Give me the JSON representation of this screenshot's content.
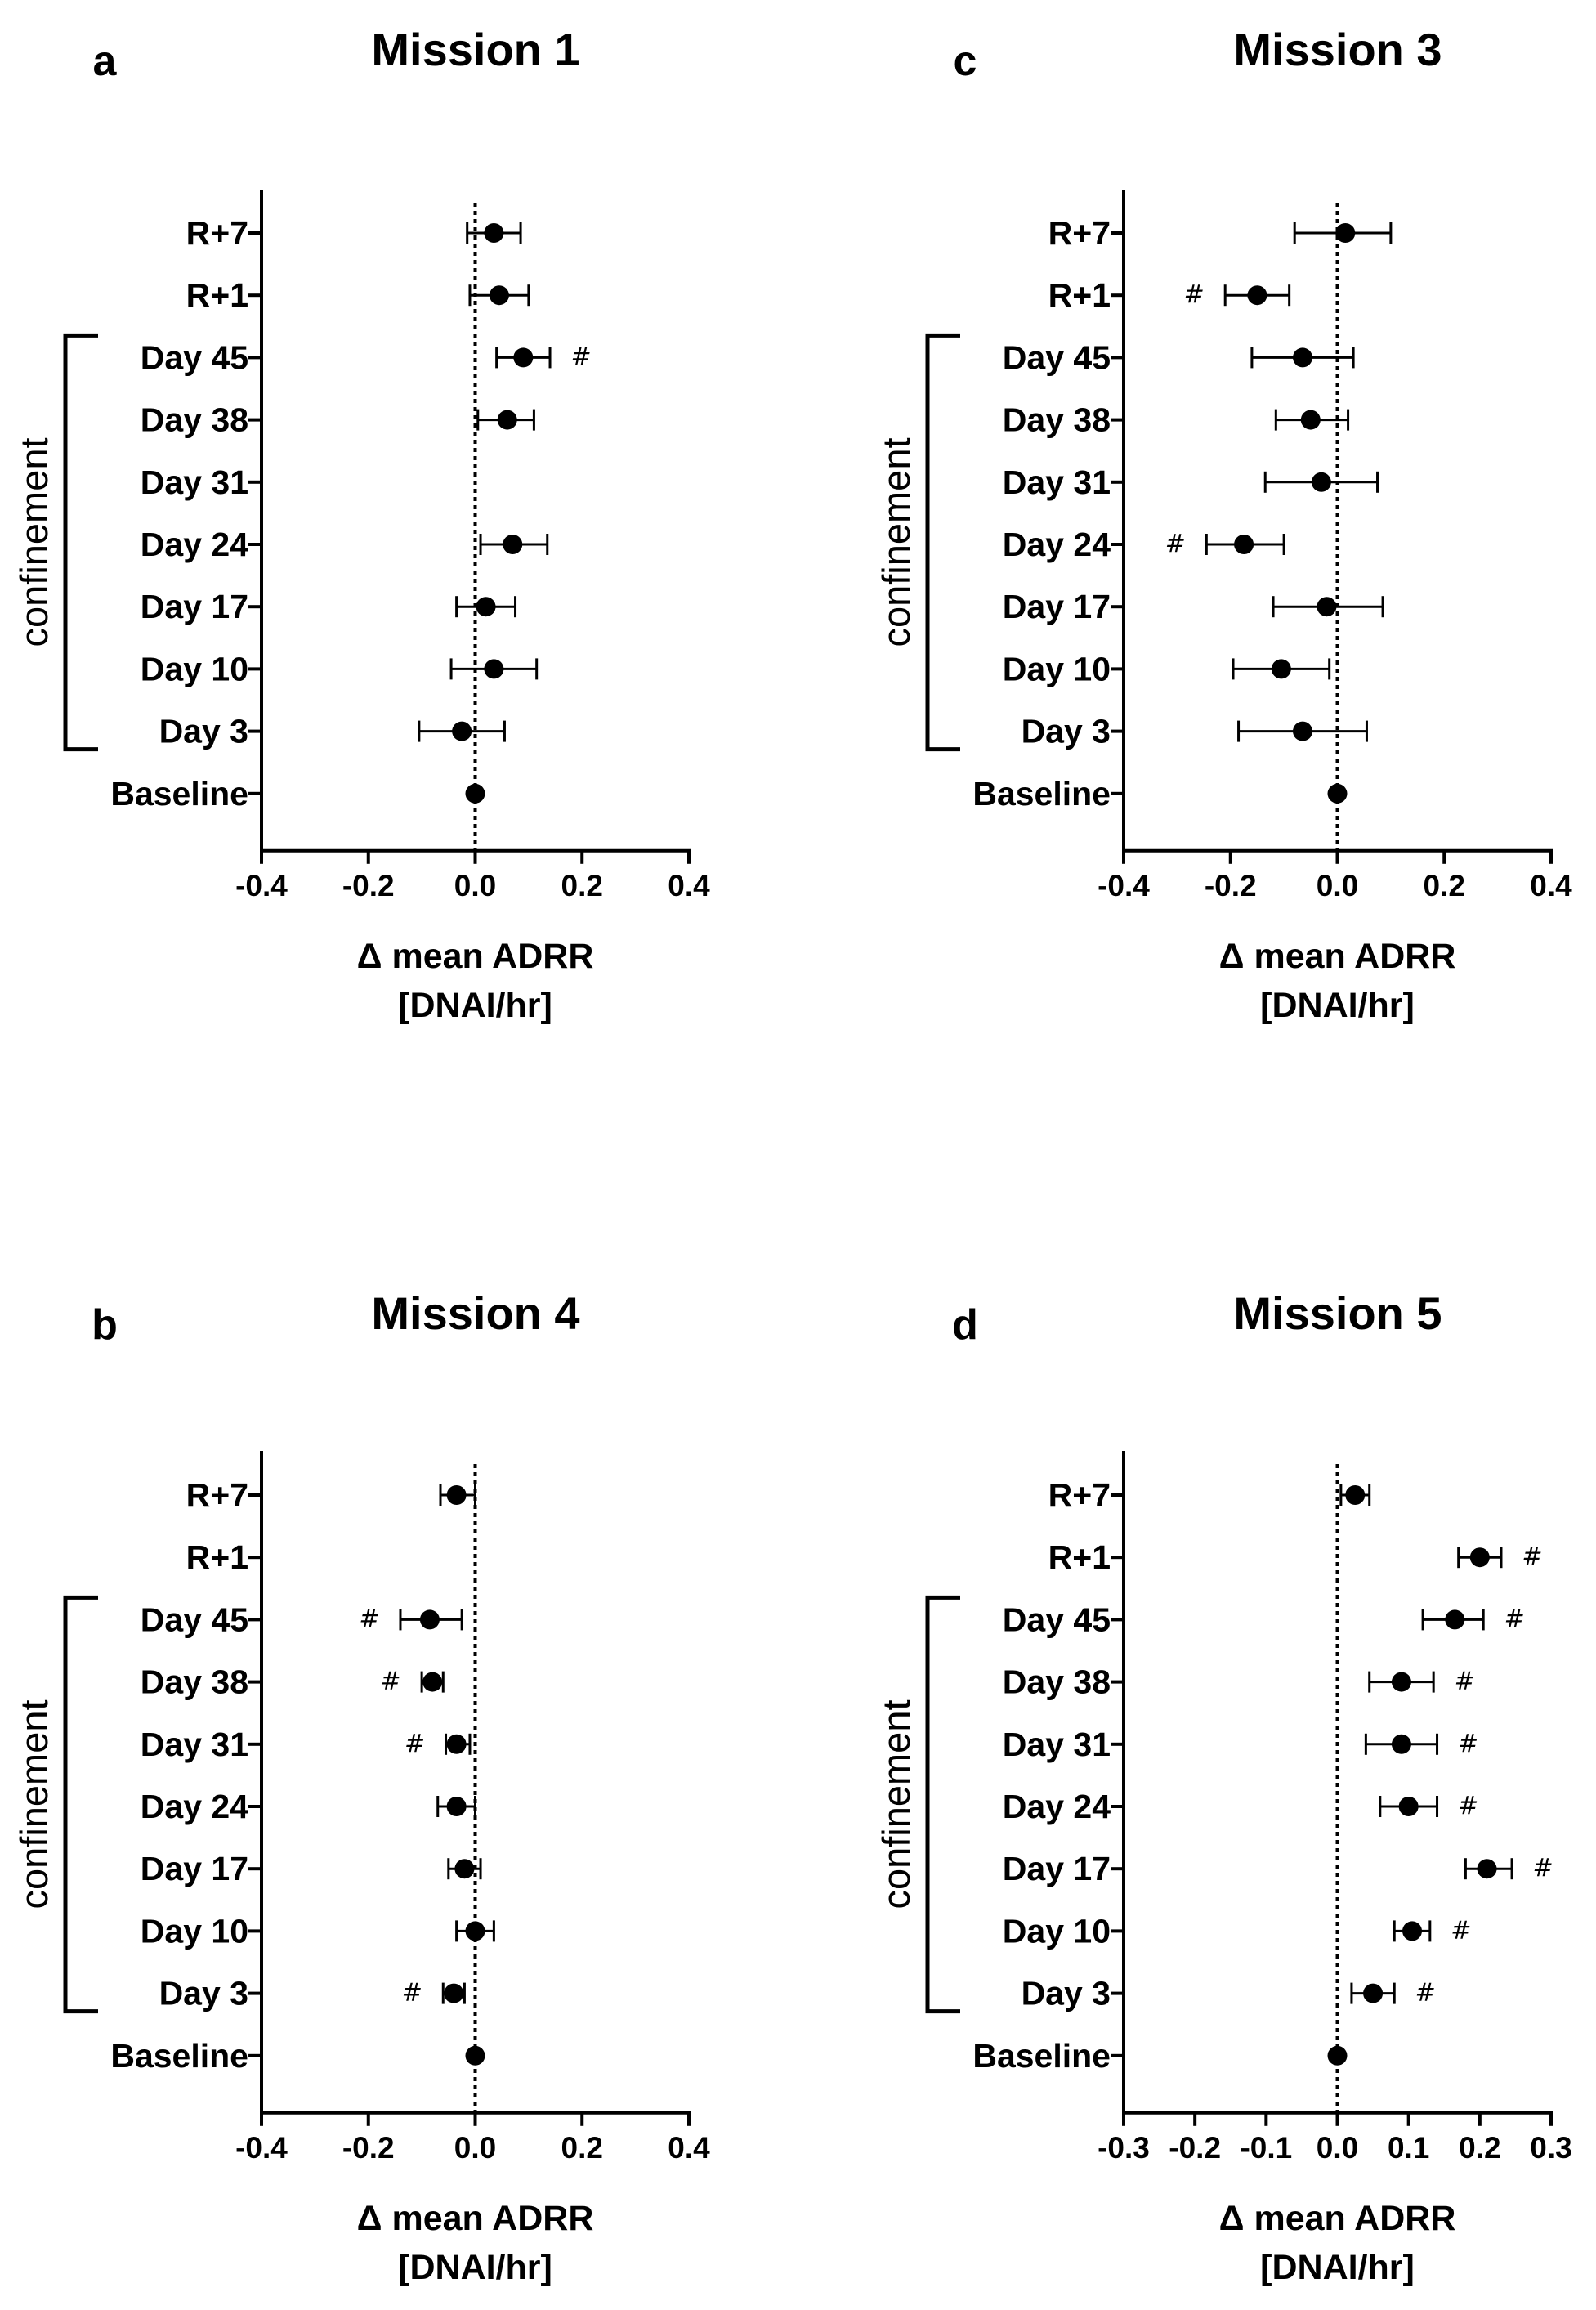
{
  "chart_data": [
    {
      "type": "scatter",
      "panel": "a",
      "title": "Mission 1",
      "xlabel": "Δ mean ADRR",
      "xlabel_unit": "[DNAI/hr]",
      "xlim": [
        -0.4,
        0.4
      ],
      "xticks": [
        "-0.4",
        "-0.2",
        "0.0",
        "0.2",
        "0.4"
      ],
      "bracket_label": "confinement",
      "categories": [
        "R+7",
        "R+1",
        "Day 45",
        "Day 38",
        "Day 31",
        "Day 24",
        "Day 17",
        "Day 10",
        "Day 3",
        "Baseline"
      ],
      "means": [
        0.035,
        0.045,
        0.09,
        0.06,
        null,
        0.07,
        0.02,
        0.035,
        -0.025,
        0.0
      ],
      "err_low": [
        -0.015,
        -0.01,
        0.04,
        0.005,
        null,
        0.01,
        -0.035,
        -0.045,
        -0.105,
        0.0
      ],
      "err_high": [
        0.085,
        0.1,
        0.14,
        0.11,
        null,
        0.135,
        0.075,
        0.115,
        0.055,
        0.0
      ],
      "sig": [
        false,
        false,
        true,
        false,
        false,
        false,
        false,
        false,
        false,
        false
      ],
      "sig_symbol": "#"
    },
    {
      "type": "scatter",
      "panel": "b",
      "title": "Mission 4",
      "xlabel": "Δ mean ADRR",
      "xlabel_unit": "[DNAI/hr]",
      "xlim": [
        -0.4,
        0.4
      ],
      "xticks": [
        "-0.4",
        "-0.2",
        "0.0",
        "0.2",
        "0.4"
      ],
      "bracket_label": "confinement",
      "categories": [
        "R+7",
        "R+1",
        "Day 45",
        "Day 38",
        "Day 31",
        "Day 24",
        "Day 17",
        "Day 10",
        "Day 3",
        "Baseline"
      ],
      "means": [
        -0.035,
        null,
        -0.085,
        -0.08,
        -0.035,
        -0.035,
        -0.02,
        0.0,
        -0.04,
        0.0
      ],
      "err_low": [
        -0.065,
        null,
        -0.14,
        -0.1,
        -0.055,
        -0.07,
        -0.05,
        -0.035,
        -0.06,
        0.0
      ],
      "err_high": [
        0.0,
        null,
        -0.025,
        -0.06,
        -0.01,
        0.0,
        0.01,
        0.035,
        -0.02,
        0.0
      ],
      "sig": [
        false,
        false,
        true,
        true,
        true,
        false,
        false,
        false,
        true,
        false
      ],
      "sig_symbol": "#"
    },
    {
      "type": "scatter",
      "panel": "c",
      "title": "Mission 3",
      "xlabel": "Δ mean ADRR",
      "xlabel_unit": "[DNAI/hr]",
      "xlim": [
        -0.4,
        0.4
      ],
      "xticks": [
        "-0.4",
        "-0.2",
        "0.0",
        "0.2",
        "0.4"
      ],
      "bracket_label": "confinement",
      "categories": [
        "R+7",
        "R+1",
        "Day 45",
        "Day 38",
        "Day 31",
        "Day 24",
        "Day 17",
        "Day 10",
        "Day 3",
        "Baseline"
      ],
      "means": [
        0.015,
        -0.15,
        -0.065,
        -0.05,
        -0.03,
        -0.175,
        -0.02,
        -0.105,
        -0.065,
        0.0
      ],
      "err_low": [
        -0.08,
        -0.21,
        -0.16,
        -0.115,
        -0.135,
        -0.245,
        -0.12,
        -0.195,
        -0.185,
        0.0
      ],
      "err_high": [
        0.1,
        -0.09,
        0.03,
        0.02,
        0.075,
        -0.1,
        0.085,
        -0.015,
        0.055,
        0.0
      ],
      "sig": [
        false,
        true,
        false,
        false,
        false,
        true,
        false,
        false,
        false,
        false
      ],
      "sig_symbol": "#"
    },
    {
      "type": "scatter",
      "panel": "d",
      "title": "Mission 5",
      "xlabel": "Δ mean ADRR",
      "xlabel_unit": "[DNAI/hr]",
      "xlim": [
        -0.3,
        0.3
      ],
      "xticks": [
        "-0.3",
        "-0.2",
        "-0.1",
        "0.0",
        "0.1",
        "0.2",
        "0.3"
      ],
      "bracket_label": "confinement",
      "categories": [
        "R+7",
        "R+1",
        "Day 45",
        "Day 38",
        "Day 31",
        "Day 24",
        "Day 17",
        "Day 10",
        "Day 3",
        "Baseline"
      ],
      "means": [
        0.025,
        0.2,
        0.165,
        0.09,
        0.09,
        0.1,
        0.21,
        0.105,
        0.05,
        0.0
      ],
      "err_low": [
        0.005,
        0.17,
        0.12,
        0.045,
        0.04,
        0.06,
        0.18,
        0.08,
        0.02,
        0.0
      ],
      "err_high": [
        0.045,
        0.23,
        0.205,
        0.135,
        0.14,
        0.14,
        0.245,
        0.13,
        0.08,
        0.0
      ],
      "sig": [
        false,
        true,
        true,
        true,
        true,
        true,
        true,
        true,
        true,
        false
      ],
      "sig_symbol": "#"
    }
  ]
}
